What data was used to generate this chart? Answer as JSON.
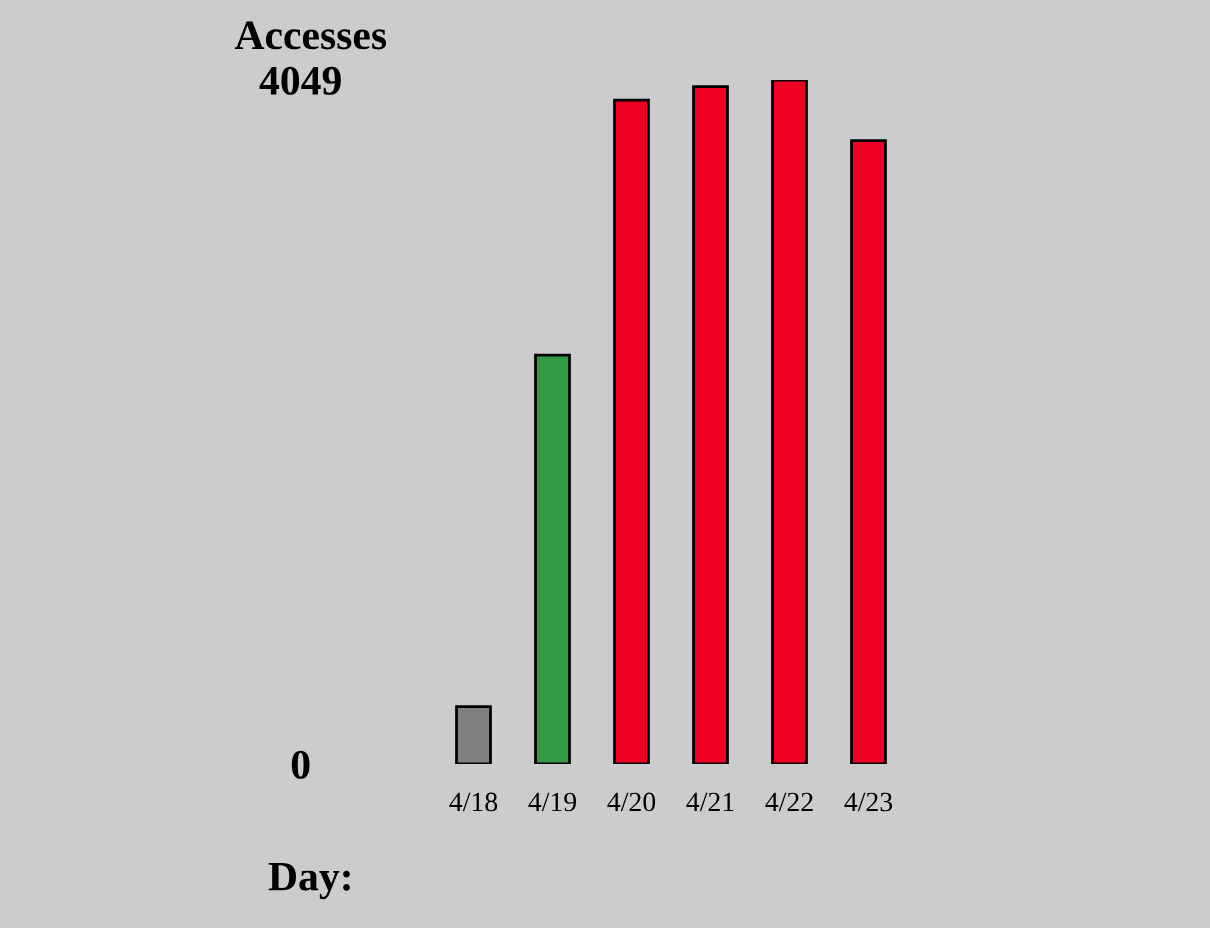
{
  "chart_data": {
    "type": "bar",
    "ylabel": "Accesses",
    "xlabel": "Day:",
    "categories": [
      "4/18",
      "4/19",
      "4/20",
      "4/21",
      "4/22",
      "4/23"
    ],
    "values": [
      340,
      2420,
      3930,
      4010,
      4049,
      3690
    ],
    "colors": [
      "#808080",
      "#339944",
      "#ee0022",
      "#ee0022",
      "#ee0022",
      "#ee0022"
    ],
    "ylim": [
      0,
      4049
    ],
    "yticks": [
      0,
      4049
    ],
    "grid": false,
    "legend": false
  }
}
